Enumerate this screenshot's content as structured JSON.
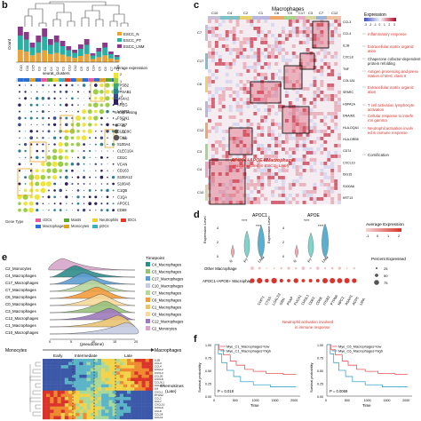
{
  "panels": {
    "b": {
      "letter": "b",
      "count_label": "Count",
      "xaxis_label": "seurat_clusters",
      "legend": [
        "ESCC_N",
        "ESCC_PT",
        "ESCC_LNM"
      ],
      "legend_colors": [
        "#e8a33b",
        "#2ab0a5",
        "#8b3a8b"
      ],
      "clusters": [
        "C10",
        "C11",
        "C15",
        "C0",
        "C1",
        "C4",
        "C2",
        "C3",
        "C13",
        "C12",
        "C9",
        "C8",
        "C14",
        "C5",
        "C6",
        "C7",
        "C16"
      ],
      "genes": [
        "TPSB2",
        "TPSAB1",
        "MS4A2",
        "AREG",
        "LAMP3",
        "FSCN1",
        "CCR7",
        "CLEC9C",
        "FCN1",
        "S100A4",
        "CLEC10A",
        "CD1C",
        "VCAN",
        "CD163",
        "S100A12",
        "S100A8",
        "C1QB",
        "C1QA",
        "APOC1",
        "CD68"
      ],
      "avg_label": "Average expression",
      "avg_ticks": [
        "2",
        "1",
        "0",
        "-1",
        "-2"
      ],
      "pct_label": "% Expressing",
      "pct_ticks": [
        "25",
        "50",
        "75",
        "100"
      ],
      "gene_type_label": "Gene Type",
      "gene_types": [
        {
          "name": "cDCs",
          "color": "#e85a9b"
        },
        {
          "name": "Macrophages",
          "color": "#2a6fd6"
        },
        {
          "name": "Masts",
          "color": "#5aa832"
        },
        {
          "name": "Monocytes",
          "color": "#e0a020"
        },
        {
          "name": "Neutrophils",
          "color": "#f0d030"
        },
        {
          "name": "pDCs",
          "color": "#34b0c0"
        },
        {
          "name": "tDCs",
          "color": "#e53a2a"
        }
      ]
    },
    "c": {
      "letter": "c",
      "title": "Macrophages",
      "expr_label": "Expression",
      "expr_ticks": [
        "-3",
        "-2",
        "-1",
        "0",
        "1",
        "2",
        "3"
      ],
      "col_labels": [
        "C10",
        "C4",
        "C2",
        "C1",
        "C6",
        "C0",
        "C17",
        "C3",
        "C7",
        "C12"
      ],
      "row_labels": [
        "C7",
        "C17",
        "C6",
        "C1",
        "C12",
        "C3",
        "C4",
        "C10"
      ],
      "annotations": [
        "Inflammatory response",
        "Extracellular matrix organization",
        "Chaperone cofactor-dependent protein refolding",
        "Antigen processing and presentation of MHC class II",
        "Extracellular matrix organization",
        "T cell activation lymphocyte activation",
        "Cellular response to interferon gamma",
        "Neutrophil activation involved in immune response",
        "Cornification"
      ],
      "overlay_line1": "APOC1+APOE+ Macrophage",
      "overlay_line2": "(Accumulated in ESCC_LNM)",
      "right_genes": [
        "CCL3",
        "CCL4",
        "IL1B",
        "CXCL8",
        "TNF",
        "COL1A1",
        "SPARC",
        "HSPA1A",
        "DNAJB1",
        "HLA-DQA1",
        "HLA-DRB5",
        "CD74",
        "CXCL10",
        "ISG15",
        "S100A8",
        "KRT13"
      ]
    },
    "d": {
      "letter": "d",
      "apoc1": "APOC1",
      "apoe": "APOE",
      "expr_level": "Expression Level",
      "groups": [
        "N",
        "PT",
        "LNM"
      ],
      "y_ticks": [
        "4",
        "2",
        "0"
      ],
      "sig": "****",
      "row1": "Other Macrophage",
      "row2": "APOC1+APOE+ Macrophage",
      "genes": [
        "CHIT1",
        "CTSS",
        "LGALS3",
        "GRN",
        "PSAP",
        "FUCA1",
        "CHI3L1",
        "CD63",
        "CD68",
        "ITGB2",
        "PTPN6",
        "NPC2",
        "ASAH1",
        "ACP5",
        "LIPA"
      ],
      "footnote_line1": "Neutrophil activation involved",
      "footnote_line2": "in immune response",
      "avg_label": "Average Expression",
      "avg_ticks": [
        "2",
        "1",
        "0",
        "-1"
      ],
      "pct_label": "Percent Expressed",
      "pct_ticks": [
        "25",
        "50",
        "75"
      ]
    },
    "e": {
      "letter": "e",
      "rows": [
        "C2_Monocytes",
        "C4_Macrophages",
        "C17_Macrophages",
        "C7_Macrophages",
        "C6_Macrophages",
        "C0_Macrophages",
        "C3_Macrophages",
        "C12_Macrophages",
        "C1_Macrophages",
        "C10_Macrophages"
      ],
      "timepoint_label": "Timepoint",
      "legend": [
        "C4_Macrophages",
        "C3_Macrophages",
        "C17_Macrophages",
        "C10_Macrophages",
        "C7_Macrophages",
        "C6_Macrophages",
        "C1_Macrophages",
        "C0_Macrophages",
        "C12_Macrophages",
        "C2_Monocytes"
      ],
      "legend_colors": [
        "#2f8c8c",
        "#98c17a",
        "#5f9ed1",
        "#c6cbe2",
        "#b9d79b",
        "#f39c3c",
        "#e9c572",
        "#f7d99b",
        "#9e7bbc",
        "#d7a6c9"
      ],
      "x_ticks": [
        "0",
        "5",
        "10",
        "15",
        "20"
      ],
      "mono": "Monocytes",
      "macro": "Macrophages",
      "pseudotime": "(pseudotime)",
      "stages": [
        "Early",
        "Intermediate",
        "Late"
      ],
      "chemokines_line1": "Chemokines",
      "chemokines_line2": "(Late)",
      "heat_genes": [
        "IL1B",
        "CCL3",
        "CCL4",
        "CXCL2",
        "CXCL3",
        "CCL20",
        "CXCL8",
        "CCL3L1",
        "CCL4L2",
        "IL6",
        "CXCL1",
        "PTGS2",
        "CCL2",
        "CCL7",
        "CXCL10",
        "CXCL9",
        "CCL8",
        "CCL18",
        "CCL13"
      ]
    },
    "f": {
      "letter": "f",
      "ylabel": "Survival probability",
      "xlabel": "Time",
      "x_ticks": [
        "0",
        "500",
        "1000",
        "1500",
        "2000"
      ],
      "y_ticks": [
        "1.00",
        "0.75",
        "0.50",
        "0.25",
        "0.00"
      ],
      "left": {
        "low": "Mye_C1_Macrophages=low",
        "high": "Mye_C1_Macrophages=high",
        "p": "P = 0.018"
      },
      "right": {
        "low": "Mye_C6_Macrophages=low",
        "high": "Mye_C6_Macrophages=high",
        "p": "P = 0.0069"
      },
      "low_color": "#e8575b",
      "high_color": "#3aa6c8"
    }
  }
}
